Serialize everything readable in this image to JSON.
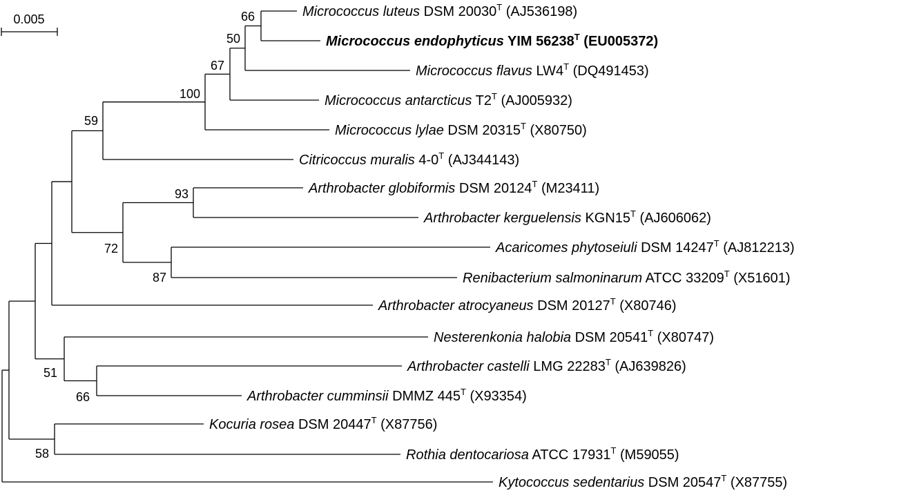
{
  "scale_bar": {
    "label": "0.005"
  },
  "taxa": [
    {
      "id": "t1",
      "genus": "Micrococcus luteus",
      "strain": "DSM 20030",
      "sup": "T",
      "accession": "(AJ536198)",
      "bold": false
    },
    {
      "id": "t2",
      "genus": "Micrococcus endophyticus",
      "strain": "YIM 56238",
      "sup": "T",
      "accession": "(EU005372)",
      "bold": true
    },
    {
      "id": "t3",
      "genus": "Micrococcus flavus",
      "strain": "LW4",
      "sup": "T",
      "accession": "(DQ491453)",
      "bold": false
    },
    {
      "id": "t4",
      "genus": "Micrococcus antarcticus",
      "strain": "T2",
      "sup": "T",
      "accession": "(AJ005932)",
      "bold": false
    },
    {
      "id": "t5",
      "genus": "Micrococcus lylae",
      "strain": "DSM 20315",
      "sup": "T",
      "accession": "(X80750)",
      "bold": false
    },
    {
      "id": "t6",
      "genus": "Citricoccus muralis",
      "strain": "4-0",
      "sup": "T",
      "accession": "(AJ344143)",
      "bold": false
    },
    {
      "id": "t7",
      "genus": "Arthrobacter globiformis",
      "strain": "DSM 20124",
      "sup": "T",
      "accession": "(M23411)",
      "bold": false
    },
    {
      "id": "t8",
      "genus": "Arthrobacter kerguelensis",
      "strain": "KGN15",
      "sup": "T",
      "accession": "(AJ606062)",
      "bold": false
    },
    {
      "id": "t9",
      "genus": "Acaricomes phytoseiuli",
      "strain": "DSM 14247",
      "sup": "T",
      "accession": "(AJ812213)",
      "bold": false
    },
    {
      "id": "t10",
      "genus": "Renibacterium salmoninarum",
      "strain": "ATCC 33209",
      "sup": "T",
      "accession": "(X51601)",
      "bold": false
    },
    {
      "id": "t11",
      "genus": "Arthrobacter atrocyaneus",
      "strain": "DSM 20127",
      "sup": "T",
      "accession": "(X80746)",
      "bold": false
    },
    {
      "id": "t12",
      "genus": "Nesterenkonia halobia",
      "strain": "DSM 20541",
      "sup": "T",
      "accession": "(X80747)",
      "bold": false
    },
    {
      "id": "t13",
      "genus": "Arthrobacter castelli",
      "strain": "LMG 22283",
      "sup": "T",
      "accession": "(AJ639826)",
      "bold": false
    },
    {
      "id": "t14",
      "genus": "Arthrobacter cumminsii",
      "strain": "DMMZ 445",
      "sup": "T",
      "accession": "(X93354)",
      "bold": false
    },
    {
      "id": "t15",
      "genus": "Kocuria rosea",
      "strain": "DSM 20447",
      "sup": "T",
      "accession": "(X87756)",
      "bold": false
    },
    {
      "id": "t16",
      "genus": "Rothia dentocariosa",
      "strain": "ATCC 17931",
      "sup": "T",
      "accession": "(M59055)",
      "bold": false
    },
    {
      "id": "t17",
      "genus": "Kytococcus sedentarius",
      "strain": "DSM 20547",
      "sup": "T",
      "accession": "(X87755)",
      "bold": false
    }
  ],
  "bootstrap": [
    {
      "node": "n66a",
      "value": "66"
    },
    {
      "node": "n50",
      "value": "50"
    },
    {
      "node": "n67",
      "value": "67"
    },
    {
      "node": "n100",
      "value": "100"
    },
    {
      "node": "n59",
      "value": "59"
    },
    {
      "node": "n93",
      "value": "93"
    },
    {
      "node": "n72",
      "value": "72"
    },
    {
      "node": "n87",
      "value": "87"
    },
    {
      "node": "n51",
      "value": "51"
    },
    {
      "node": "n66b",
      "value": "66"
    },
    {
      "node": "n58",
      "value": "58"
    }
  ]
}
